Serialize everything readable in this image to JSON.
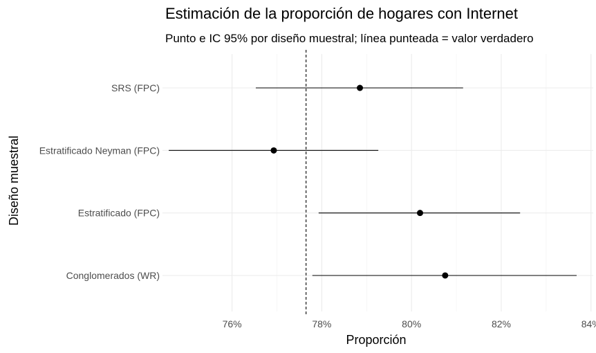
{
  "chart_data": {
    "type": "scatter",
    "title": "Estimación de la proporción de hogares con Internet",
    "subtitle": "Punto e IC 95% por diseño muestral; línea punteada = valor verdadero",
    "xlabel": "Proporción",
    "ylabel": "Diseño muestral",
    "xlim": [
      0.7445,
      0.8405
    ],
    "x_ticks": [
      0.76,
      0.78,
      0.8,
      0.82,
      0.84
    ],
    "x_tick_labels": [
      "76%",
      "78%",
      "80%",
      "82%",
      "84%"
    ],
    "categories": [
      "SRS (FPC)",
      "Estratificado Neyman (FPC)",
      "Estratificado (FPC)",
      "Conglomerados (WR)"
    ],
    "points": [
      {
        "label": "SRS (FPC)",
        "estimate": 0.7885,
        "lower": 0.7653,
        "upper": 0.8115
      },
      {
        "label": "Estratificado Neyman (FPC)",
        "estimate": 0.7693,
        "lower": 0.7459,
        "upper": 0.7926
      },
      {
        "label": "Estratificado (FPC)",
        "estimate": 0.8019,
        "lower": 0.7793,
        "upper": 0.8242
      },
      {
        "label": "Conglomerados (WR)",
        "estimate": 0.8075,
        "lower": 0.7779,
        "upper": 0.8368
      }
    ],
    "true_value": 0.7765,
    "grid": true,
    "legend": "none"
  }
}
